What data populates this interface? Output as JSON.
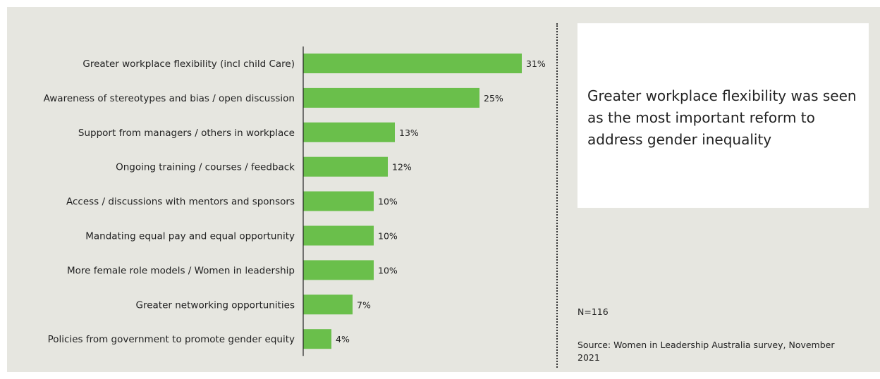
{
  "chart_data": {
    "type": "bar",
    "orientation": "horizontal",
    "categories": [
      "Greater workplace flexibility (incl child Care)",
      "Awareness of stereotypes and bias / open discussion",
      "Support from managers / others in workplace",
      "Ongoing training / courses / feedback",
      "Access / discussions with mentors and sponsors",
      "Mandating equal pay and equal opportunity",
      "More female role models / Women in leadership",
      "Greater networking opportunities",
      "Policies from government to promote gender equity"
    ],
    "values": [
      31,
      25,
      13,
      12,
      10,
      10,
      10,
      7,
      4
    ],
    "value_labels": [
      "31%",
      "25%",
      "13%",
      "12%",
      "10%",
      "10%",
      "10%",
      "7%",
      "4%"
    ],
    "title": "",
    "xlabel": "",
    "ylabel": "",
    "grid": false,
    "bar_color": "#6abf4b"
  },
  "callout": {
    "text": "Greater workplace flexibility was seen as the most important reform to address gender inequality"
  },
  "notes": {
    "n": "N=116",
    "source": "Source: Women in Leadership Australia survey, November 2021"
  },
  "colors": {
    "background": "#e6e6e0",
    "bar": "#6abf4b",
    "text": "#222222"
  }
}
